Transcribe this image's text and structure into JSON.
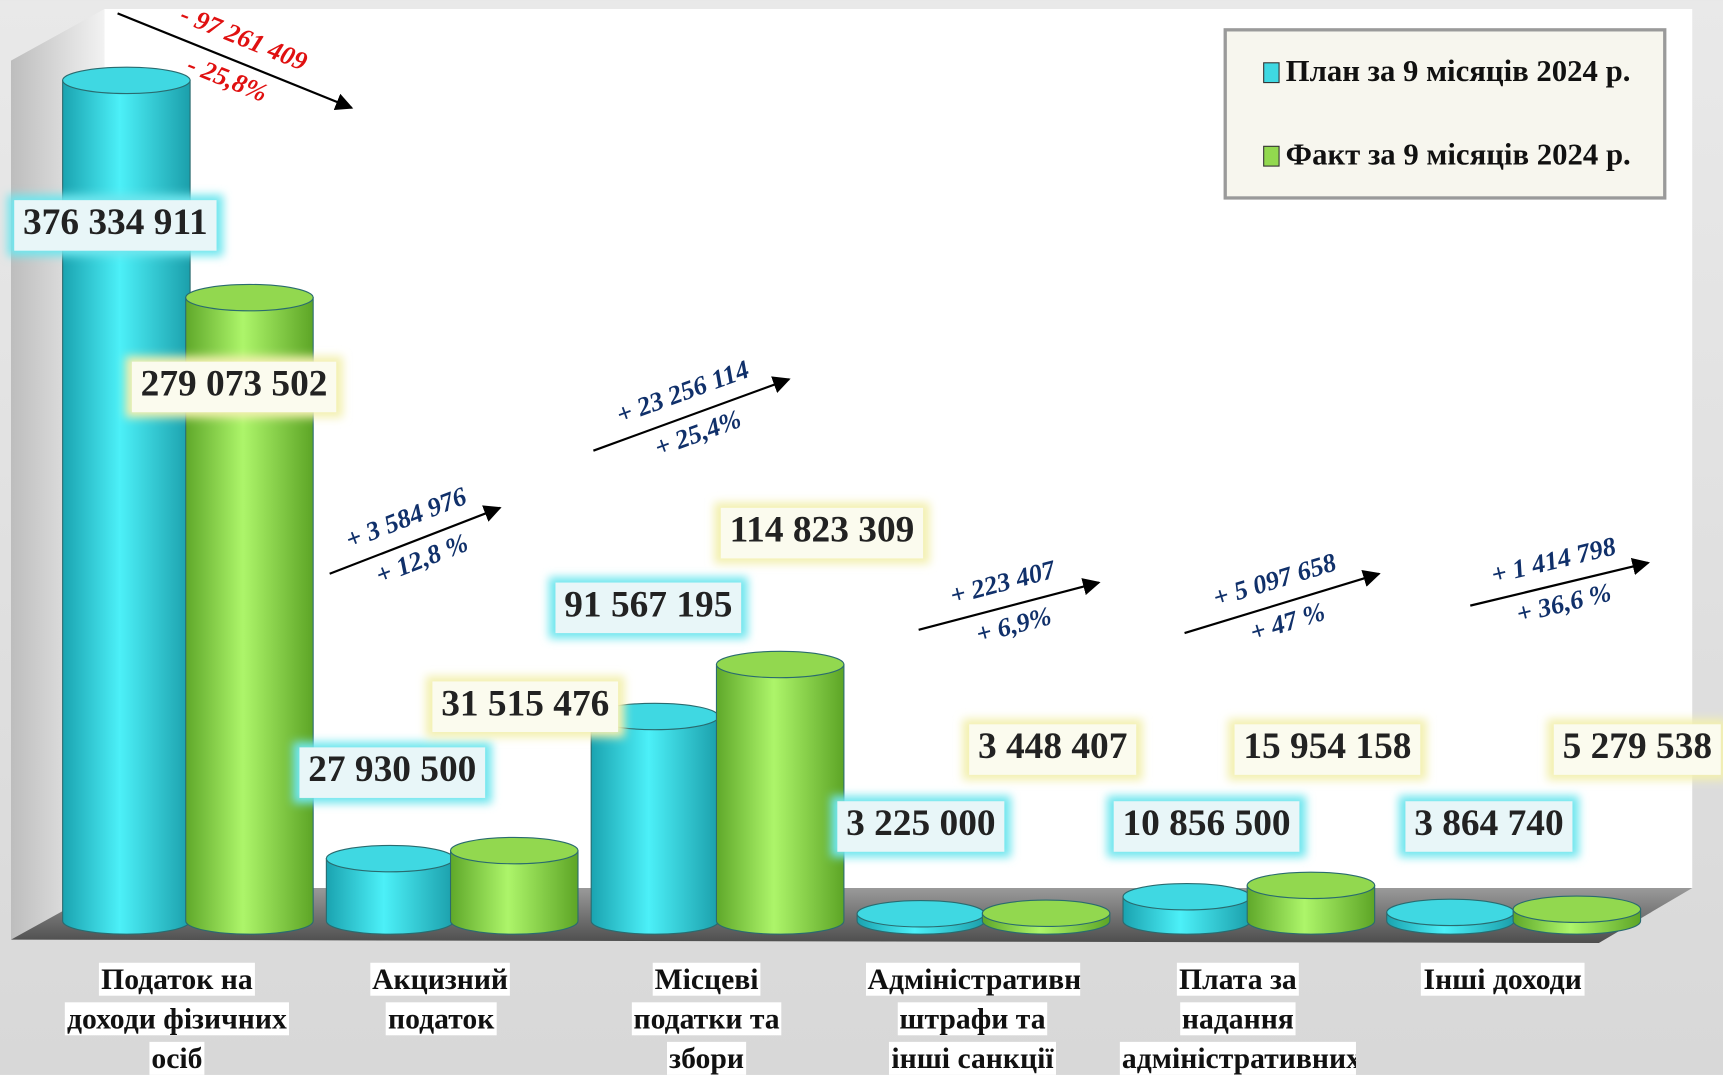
{
  "chart_data": {
    "type": "bar3d-cylinder",
    "categories": [
      "Податок на доходи фізичних осіб",
      "Акцизний податок",
      "Місцеві податки та збори",
      "Адміністративні штрафи та інші санкції",
      "Плата за надання адміністративних послуг",
      "Інші доходи"
    ],
    "series": [
      {
        "name": "План за 9 місяців 2024 р.",
        "color": "#3fd8e2",
        "values": [
          376334911,
          27930500,
          91567195,
          3225000,
          10856500,
          3864740
        ],
        "value_labels": [
          "376 334 911",
          "27 930 500",
          "91 567 195",
          "3 225 000",
          "10 856 500",
          "3 864 740"
        ]
      },
      {
        "name": "Факт за 9 місяців 2024 р.",
        "color": "#92d84f",
        "values": [
          279073502,
          31515476,
          114823309,
          3448407,
          15954158,
          5279538
        ],
        "value_labels": [
          "279 073 502",
          "31 515 476",
          "114 823 309",
          "3 448 407",
          "15 954 158",
          "5 279 538"
        ]
      }
    ],
    "annotations": [
      {
        "difference": "- 97 261 409",
        "percent": "- 25,8%",
        "color": "#e01010"
      },
      {
        "difference": "+ 3 584 976",
        "percent": "+ 12,8 %",
        "color": "#10306a"
      },
      {
        "difference": "+ 23 256 114",
        "percent": "+ 25,4%",
        "color": "#10306a"
      },
      {
        "difference": "+ 223 407",
        "percent": "+ 6,9%",
        "color": "#10306a"
      },
      {
        "difference": "+ 5 097 658",
        "percent": "+ 47 %",
        "color": "#10306a"
      },
      {
        "difference": "+ 1 414 798",
        "percent": "+ 36,6 %",
        "color": "#10306a"
      }
    ],
    "legend": "top-right"
  }
}
